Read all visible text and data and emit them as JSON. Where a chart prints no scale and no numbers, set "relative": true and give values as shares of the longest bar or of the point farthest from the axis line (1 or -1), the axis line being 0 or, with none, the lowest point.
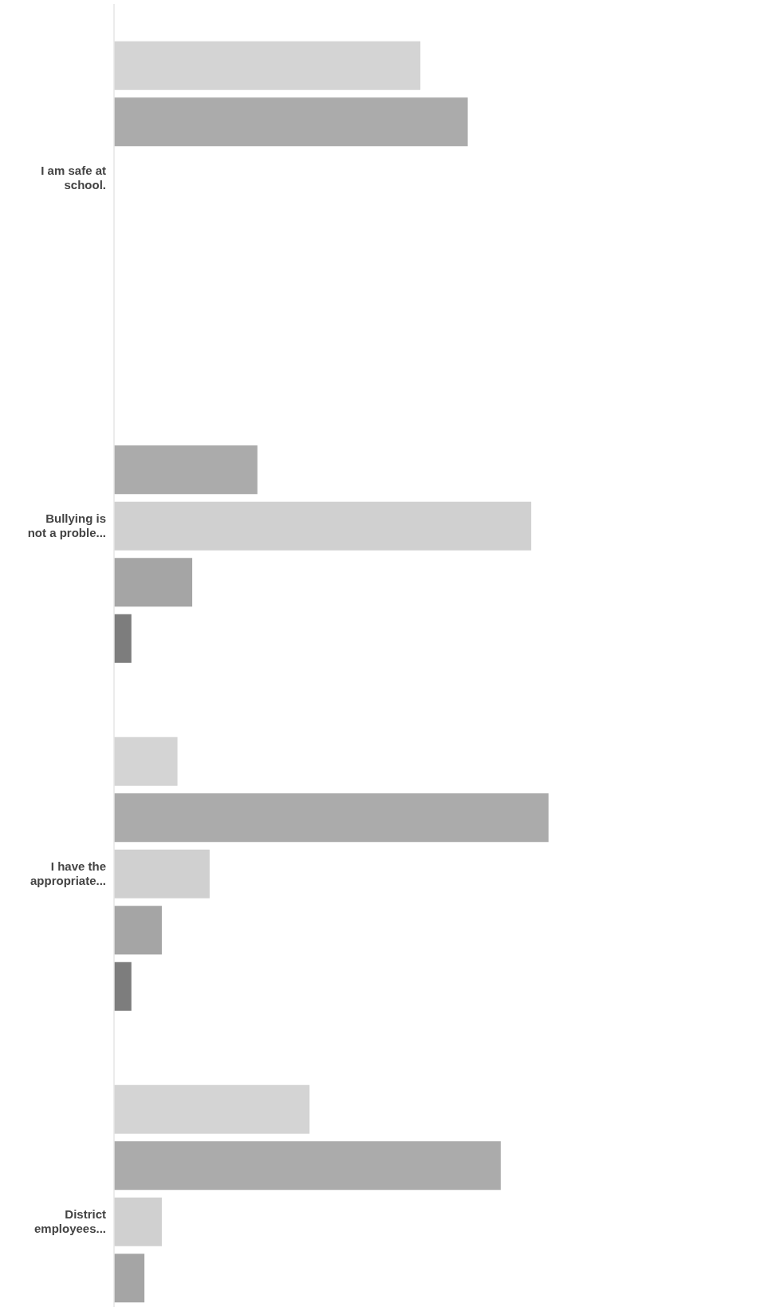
{
  "chart_data": {
    "type": "bar",
    "orientation": "horizontal",
    "relative": true,
    "categories": [
      "I am safe at school.",
      "Bullying is not a proble...",
      "I have the appropriate...",
      "District employees..."
    ],
    "series": [
      {
        "color": "#d4d4d4",
        "values": [
          0.705,
          0,
          0.146,
          0.45
        ]
      },
      {
        "color": "#ababab",
        "values": [
          0.814,
          0.33,
          1,
          0.89
        ]
      },
      {
        "color": "#d0d0d0",
        "values": [
          0,
          0.96,
          0.22,
          0.11
        ]
      },
      {
        "color": "#a5a5a5",
        "values": [
          0,
          0.18,
          0.11,
          0.07
        ]
      },
      {
        "color": "#7d7d7d",
        "values": [
          0,
          0.04,
          0.04,
          0
        ]
      }
    ]
  }
}
